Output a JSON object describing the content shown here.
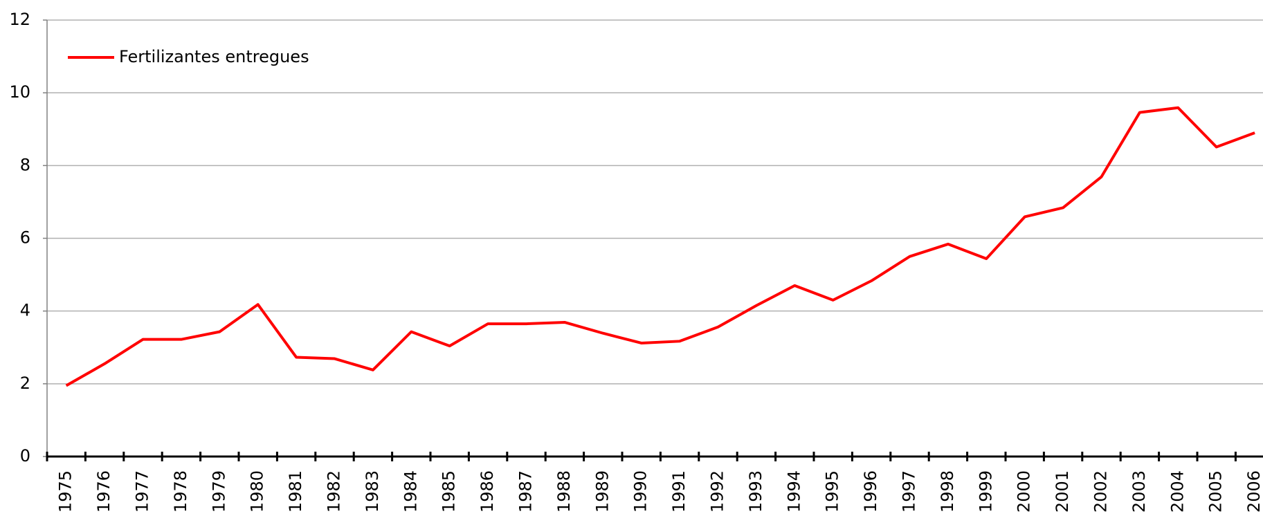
{
  "chart_data": {
    "type": "line",
    "categories": [
      "1975",
      "1976",
      "1977",
      "1978",
      "1979",
      "1980",
      "1981",
      "1982",
      "1983",
      "1984",
      "1985",
      "1986",
      "1987",
      "1988",
      "1989",
      "1990",
      "1991",
      "1992",
      "1993",
      "1994",
      "1995",
      "1996",
      "1997",
      "1998",
      "1999",
      "2000",
      "2001",
      "2002",
      "2003",
      "2004",
      "2005",
      "2006"
    ],
    "series": [
      {
        "name": "Fertilizantes entregues",
        "color": "#ff0000",
        "values": [
          1.95,
          2.55,
          3.22,
          3.22,
          3.43,
          4.18,
          2.73,
          2.69,
          2.38,
          3.43,
          3.04,
          3.65,
          3.65,
          3.69,
          3.39,
          3.12,
          3.17,
          3.56,
          4.15,
          4.7,
          4.3,
          4.83,
          5.5,
          5.84,
          5.44,
          6.59,
          6.84,
          7.69,
          9.46,
          9.59,
          8.51,
          8.9
        ]
      }
    ],
    "ylim": [
      0,
      12
    ],
    "yticks": [
      0,
      2,
      4,
      6,
      8,
      10,
      12
    ],
    "grid": true,
    "legend": "top-left"
  }
}
